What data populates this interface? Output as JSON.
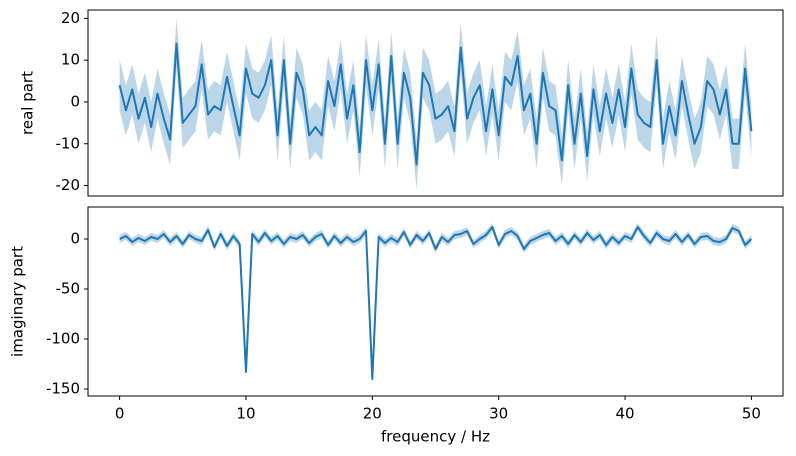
{
  "chart_data": [
    {
      "type": "line",
      "ylabel": "real part",
      "x": [
        0,
        0.5,
        1,
        1.5,
        2,
        2.5,
        3,
        3.5,
        4,
        4.5,
        5,
        5.5,
        6,
        6.5,
        7,
        7.5,
        8,
        8.5,
        9,
        9.5,
        10,
        10.5,
        11,
        11.5,
        12,
        12.5,
        13,
        13.5,
        14,
        14.5,
        15,
        15.5,
        16,
        16.5,
        17,
        17.5,
        18,
        18.5,
        19,
        19.5,
        20,
        20.5,
        21,
        21.5,
        22,
        22.5,
        23,
        23.5,
        24,
        24.5,
        25,
        25.5,
        26,
        26.5,
        27,
        27.5,
        28,
        28.5,
        29,
        29.5,
        30,
        30.5,
        31,
        31.5,
        32,
        32.5,
        33,
        33.5,
        34,
        34.5,
        35,
        35.5,
        36,
        36.5,
        37,
        37.5,
        38,
        38.5,
        39,
        39.5,
        40,
        40.5,
        41,
        41.5,
        42,
        42.5,
        43,
        43.5,
        44,
        44.5,
        45,
        45.5,
        46,
        46.5,
        47,
        47.5,
        48,
        48.5,
        49,
        49.5,
        50
      ],
      "series": [
        {
          "color": "#1f77b4",
          "spread": 6,
          "values": [
            4,
            -2,
            3,
            -4,
            1,
            -6,
            2,
            -4,
            -9,
            14,
            -5,
            -3,
            -1,
            9,
            -3,
            -1,
            -2,
            6,
            -1,
            -8,
            8,
            2,
            1,
            4,
            10,
            -8,
            10,
            -10,
            7,
            3,
            -8,
            -6,
            -8,
            5,
            -1,
            9,
            -4,
            4,
            -12,
            10,
            -2,
            9,
            -10,
            11,
            -10,
            7,
            1,
            -15,
            7,
            4,
            -4,
            -3,
            -1,
            -7,
            13,
            -4,
            1,
            4,
            -7,
            3,
            -8,
            6,
            4,
            11,
            -2,
            2,
            -10,
            7,
            -1,
            -2,
            -14,
            4,
            -10,
            2,
            -13,
            3,
            -7,
            2,
            -5,
            3,
            -6,
            8,
            -3,
            -5,
            -6,
            10,
            -10,
            -1,
            -8,
            5,
            -3,
            -10,
            -6,
            5,
            3,
            -3,
            3,
            -10,
            -10,
            8,
            -7
          ]
        }
      ],
      "xlim": [
        -2.5,
        52.5
      ],
      "ylim": [
        -22.5,
        22
      ],
      "yticks": [
        -20,
        -10,
        0,
        10,
        20
      ]
    },
    {
      "type": "line",
      "ylabel": "imaginary part",
      "xlabel": "frequency / Hz",
      "x": [
        0,
        0.5,
        1,
        1.5,
        2,
        2.5,
        3,
        3.5,
        4,
        4.5,
        5,
        5.5,
        6,
        6.5,
        7,
        7.5,
        8,
        8.5,
        9,
        9.5,
        10,
        10.5,
        11,
        11.5,
        12,
        12.5,
        13,
        13.5,
        14,
        14.5,
        15,
        15.5,
        16,
        16.5,
        17,
        17.5,
        18,
        18.5,
        19,
        19.5,
        20,
        20.5,
        21,
        21.5,
        22,
        22.5,
        23,
        23.5,
        24,
        24.5,
        25,
        25.5,
        26,
        26.5,
        27,
        27.5,
        28,
        28.5,
        29,
        29.5,
        30,
        30.5,
        31,
        31.5,
        32,
        32.5,
        33,
        33.5,
        34,
        34.5,
        35,
        35.5,
        36,
        36.5,
        37,
        37.5,
        38,
        38.5,
        39,
        39.5,
        40,
        40.5,
        41,
        41.5,
        42,
        42.5,
        43,
        43.5,
        44,
        44.5,
        45,
        45.5,
        46,
        46.5,
        47,
        47.5,
        48,
        48.5,
        49,
        49.5,
        50
      ],
      "series": [
        {
          "color": "#1f77b4",
          "spread": 4,
          "values": [
            0,
            3,
            -3,
            1,
            -2,
            2,
            0,
            5,
            -3,
            3,
            -5,
            4,
            0,
            -2,
            9,
            -8,
            5,
            -7,
            3,
            -5,
            -133,
            5,
            -3,
            6,
            -2,
            3,
            -5,
            2,
            0,
            4,
            -4,
            2,
            5,
            -6,
            3,
            -4,
            2,
            -3,
            0,
            8,
            -140,
            2,
            -4,
            1,
            -3,
            7,
            -6,
            4,
            -2,
            6,
            -10,
            2,
            -3,
            4,
            5,
            8,
            -5,
            0,
            4,
            12,
            -6,
            5,
            8,
            3,
            -10,
            -2,
            1,
            4,
            6,
            -2,
            3,
            -5,
            4,
            -3,
            6,
            -1,
            4,
            -6,
            2,
            -4,
            3,
            0,
            12,
            3,
            -4,
            6,
            0,
            -2,
            5,
            -3,
            4,
            -5,
            2,
            3,
            -2,
            -3,
            0,
            11,
            8,
            -6,
            0
          ]
        }
      ],
      "xlim": [
        -2.5,
        52.5
      ],
      "xticks": [
        0,
        10,
        20,
        30,
        40,
        50
      ],
      "ylim": [
        -157,
        32
      ],
      "yticks": [
        -150,
        -100,
        -50,
        0
      ]
    }
  ]
}
